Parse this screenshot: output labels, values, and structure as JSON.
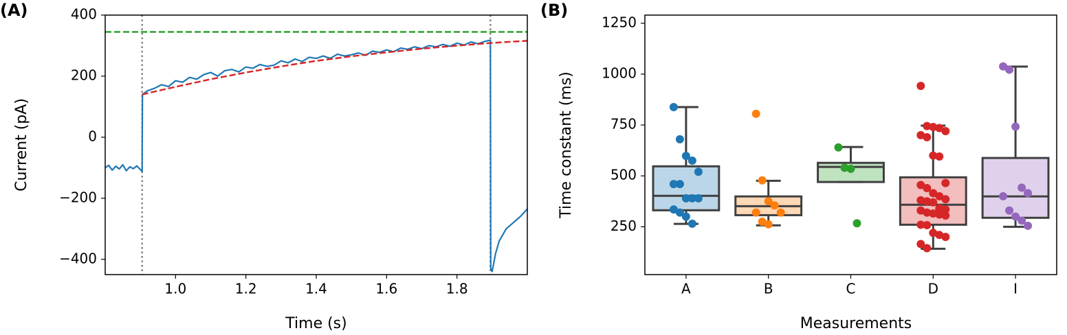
{
  "chart_data": [
    {
      "type": "line",
      "panel_label": "(A)",
      "x_label": "Time (s)",
      "y_label": "Current (pA)",
      "xlim": [
        0.8,
        2.0
      ],
      "ylim": [
        -450,
        400
      ],
      "xticks": [
        {
          "value": 1.0,
          "label": "1.0"
        },
        {
          "value": 1.2,
          "label": "1.2"
        },
        {
          "value": 1.4,
          "label": "1.4"
        },
        {
          "value": 1.6,
          "label": "1.6"
        },
        {
          "value": 1.8,
          "label": "1.8"
        }
      ],
      "yticks": [
        {
          "value": -400,
          "label": "−400"
        },
        {
          "value": -200,
          "label": "−200"
        },
        0,
        200,
        400
      ],
      "series": [
        {
          "color": "#1f77b4",
          "style": "solid",
          "x": [
            0.8,
            0.81,
            0.82,
            0.83,
            0.84,
            0.85,
            0.86,
            0.87,
            0.88,
            0.89,
            0.9,
            0.905,
            0.906,
            0.92,
            0.94,
            0.96,
            0.98,
            1.0,
            1.02,
            1.04,
            1.06,
            1.08,
            1.1,
            1.12,
            1.14,
            1.16,
            1.18,
            1.2,
            1.22,
            1.24,
            1.26,
            1.28,
            1.3,
            1.32,
            1.34,
            1.36,
            1.38,
            1.4,
            1.42,
            1.44,
            1.46,
            1.48,
            1.5,
            1.52,
            1.54,
            1.56,
            1.58,
            1.6,
            1.62,
            1.64,
            1.66,
            1.68,
            1.7,
            1.72,
            1.74,
            1.76,
            1.78,
            1.8,
            1.82,
            1.84,
            1.86,
            1.88,
            1.895,
            1.896,
            1.9,
            1.91,
            1.92,
            1.93,
            1.94,
            1.96,
            1.98,
            2.0
          ],
          "values": [
            -100,
            -92,
            -108,
            -95,
            -104,
            -90,
            -110,
            -97,
            -103,
            -94,
            -106,
            -112,
            140,
            152,
            160,
            172,
            166,
            185,
            180,
            196,
            190,
            205,
            212,
            200,
            218,
            222,
            214,
            230,
            226,
            238,
            232,
            236,
            250,
            244,
            256,
            248,
            262,
            258,
            266,
            258,
            272,
            266,
            270,
            276,
            268,
            282,
            278,
            286,
            280,
            292,
            288,
            296,
            290,
            300,
            296,
            304,
            298,
            308,
            302,
            312,
            306,
            314,
            318,
            -430,
            -440,
            -380,
            -340,
            -320,
            -300,
            -280,
            -260,
            -235
          ]
        },
        {
          "color": "#d62728",
          "style": "dashed",
          "x": [
            0.905,
            1.0,
            1.1,
            1.2,
            1.3,
            1.4,
            1.5,
            1.6,
            1.7,
            1.8,
            1.9,
            2.0
          ],
          "values": [
            140,
            165,
            190,
            212,
            232,
            250,
            265,
            278,
            290,
            300,
            309,
            316
          ]
        }
      ],
      "hlines": [
        {
          "value": 345,
          "color": "#2ca02c",
          "style": "dashed"
        }
      ],
      "vlines": [
        {
          "value": 0.905,
          "color": "#808080",
          "style": "dotted"
        },
        {
          "value": 1.895,
          "color": "#808080",
          "style": "dotted"
        }
      ]
    },
    {
      "type": "box",
      "panel_label": "(B)",
      "x_label": "Measurements",
      "y_label": "Time constant (ms)",
      "ylim": [
        15,
        1290
      ],
      "yticks": [
        250,
        500,
        750,
        1000,
        1250
      ],
      "categories": [
        "A",
        "B",
        "C",
        "D",
        "I"
      ],
      "boxes": [
        {
          "color": "#1f77b4",
          "whisker_low": 264,
          "q1": 331,
          "median": 402,
          "q3": 547,
          "whisker_high": 838,
          "points": [
            838,
            680,
            598,
            575,
            520,
            460,
            460,
            390,
            390,
            390,
            335,
            320,
            300,
            265
          ]
        },
        {
          "color": "#ff7f0e",
          "whisker_low": 257,
          "q1": 307,
          "median": 351,
          "q3": 399,
          "whisker_high": 476,
          "points": [
            805,
            478,
            375,
            355,
            320,
            320,
            275,
            262
          ]
        },
        {
          "color": "#2ca02c",
          "whisker_low": 470,
          "q1": 470,
          "median": 544,
          "q3": 564,
          "whisker_high": 642,
          "points": [
            640,
            540,
            535,
            267
          ]
        },
        {
          "color": "#d62728",
          "whisker_low": 142,
          "q1": 260,
          "median": 358,
          "q3": 493,
          "whisker_high": 747,
          "points": [
            942,
            745,
            740,
            735,
            720,
            700,
            690,
            600,
            595,
            465,
            455,
            440,
            415,
            400,
            385,
            380,
            375,
            370,
            340,
            335,
            330,
            320,
            315,
            310,
            305,
            260,
            258,
            220,
            210,
            200,
            165,
            145
          ]
        },
        {
          "color": "#9467bd",
          "whisker_low": 250,
          "q1": 294,
          "median": 399,
          "q3": 588,
          "whisker_high": 1037,
          "points": [
            1038,
            1022,
            742,
            442,
            415,
            400,
            330,
            300,
            280,
            255
          ]
        }
      ]
    }
  ]
}
